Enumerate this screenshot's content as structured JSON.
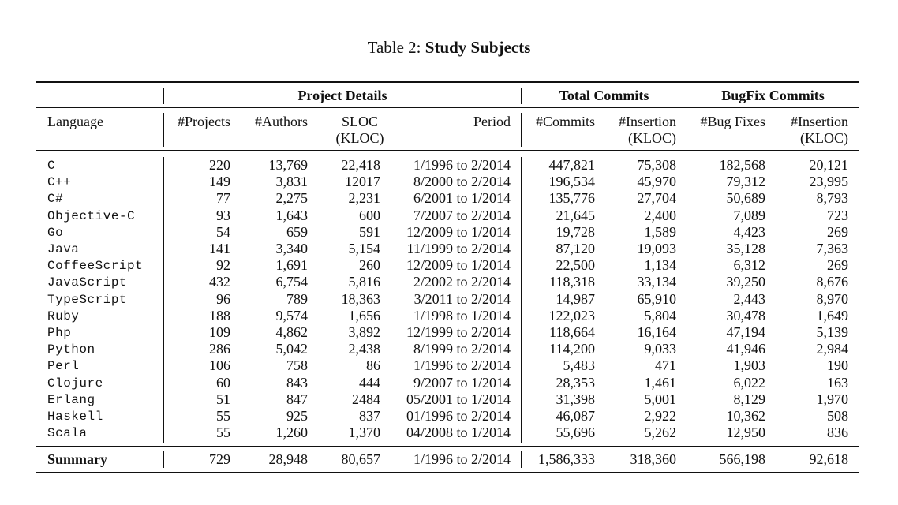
{
  "caption": {
    "prefix": "Table 2:",
    "title": "Study Subjects"
  },
  "group_headers": {
    "project_details": "Project Details",
    "total_commits": "Total Commits",
    "bugfix_commits": "BugFix Commits"
  },
  "column_headers": {
    "language": "Language",
    "projects": "#Projects",
    "authors": "#Authors",
    "sloc": [
      "SLOC",
      "(KLOC)"
    ],
    "period": "Period",
    "commits": "#Commits",
    "insertion_total": [
      "#Insertion",
      "(KLOC)"
    ],
    "bug_fixes": "#Bug Fixes",
    "insertion_bugfix": [
      "#Insertion",
      "(KLOC)"
    ]
  },
  "rows": [
    [
      "C",
      "220",
      "13,769",
      "22,418",
      "1/1996 to 2/2014",
      "447,821",
      "75,308",
      "182,568",
      "20,121"
    ],
    [
      "C++",
      "149",
      "3,831",
      "12017",
      "8/2000 to 2/2014",
      "196,534",
      "45,970",
      "79,312",
      "23,995"
    ],
    [
      "C#",
      "77",
      "2,275",
      "2,231",
      "6/2001 to 1/2014",
      "135,776",
      "27,704",
      "50,689",
      "8,793"
    ],
    [
      "Objective-C",
      "93",
      "1,643",
      "600",
      "7/2007 to 2/2014",
      "21,645",
      "2,400",
      "7,089",
      "723"
    ],
    [
      "Go",
      "54",
      "659",
      "591",
      "12/2009 to 1/2014",
      "19,728",
      "1,589",
      "4,423",
      "269"
    ],
    [
      "Java",
      "141",
      "3,340",
      "5,154",
      "11/1999 to 2/2014",
      "87,120",
      "19,093",
      "35,128",
      "7,363"
    ],
    [
      "CoffeeScript",
      "92",
      "1,691",
      "260",
      "12/2009 to 1/2014",
      "22,500",
      "1,134",
      "6,312",
      "269"
    ],
    [
      "JavaScript",
      "432",
      "6,754",
      "5,816",
      "2/2002 to 2/2014",
      "118,318",
      "33,134",
      "39,250",
      "8,676"
    ],
    [
      "TypeScript",
      "96",
      "789",
      "18,363",
      "3/2011 to 2/2014",
      "14,987",
      "65,910",
      "2,443",
      "8,970"
    ],
    [
      "Ruby",
      "188",
      "9,574",
      "1,656",
      "1/1998 to 1/2014",
      "122,023",
      "5,804",
      "30,478",
      "1,649"
    ],
    [
      "Php",
      "109",
      "4,862",
      "3,892",
      "12/1999 to 2/2014",
      "118,664",
      "16,164",
      "47,194",
      "5,139"
    ],
    [
      "Python",
      "286",
      "5,042",
      "2,438",
      "8/1999 to 2/2014",
      "114,200",
      "9,033",
      "41,946",
      "2,984"
    ],
    [
      "Perl",
      "106",
      "758",
      "86",
      "1/1996 to 2/2014",
      "5,483",
      "471",
      "1,903",
      "190"
    ],
    [
      "Clojure",
      "60",
      "843",
      "444",
      "9/2007 to 1/2014",
      "28,353",
      "1,461",
      "6,022",
      "163"
    ],
    [
      "Erlang",
      "51",
      "847",
      "2484",
      "05/2001 to 1/2014",
      "31,398",
      "5,001",
      "8,129",
      "1,970"
    ],
    [
      "Haskell",
      "55",
      "925",
      "837",
      "01/1996 to 2/2014",
      "46,087",
      "2,922",
      "10,362",
      "508"
    ],
    [
      "Scala",
      "55",
      "1,260",
      "1,370",
      "04/2008 to 1/2014",
      "55,696",
      "5,262",
      "12,950",
      "836"
    ]
  ],
  "summary": [
    "Summary",
    "729",
    "28,948",
    "80,657",
    "1/1996 to 2/2014",
    "1,586,333",
    "318,360",
    "566,198",
    "92,618"
  ]
}
